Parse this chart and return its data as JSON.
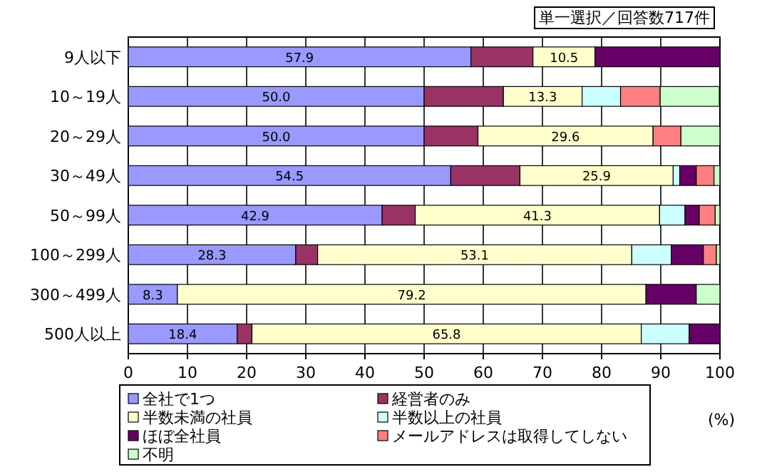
{
  "chart_data": {
    "type": "bar",
    "orientation": "horizontal",
    "stacked": true,
    "categories": [
      "9人以下",
      "10～19人",
      "20～29人",
      "30～49人",
      "50～99人",
      "100～299人",
      "300～499人",
      "500人以上"
    ],
    "series": [
      {
        "name": "全社で1つ",
        "color": "#9999ff",
        "values": [
          57.9,
          50.0,
          50.0,
          54.5,
          42.9,
          28.3,
          8.3,
          18.4
        ],
        "value_labels": [
          "57.9",
          "50.0",
          "50.0",
          "54.5",
          "42.9",
          "28.3",
          "8.3",
          "18.4"
        ]
      },
      {
        "name": "経営者のみ",
        "color": "#993366",
        "values": [
          10.5,
          13.4,
          9.1,
          11.7,
          5.6,
          3.7,
          null,
          2.5
        ]
      },
      {
        "name": "半数未満の社員",
        "color": "#ffffcc",
        "values": [
          10.5,
          13.3,
          29.6,
          25.9,
          41.3,
          53.1,
          79.2,
          65.8
        ],
        "value_labels": [
          "10.5",
          "13.3",
          "29.6",
          "25.9",
          "41.3",
          "53.1",
          "79.2",
          "65.8"
        ]
      },
      {
        "name": "半数以上の社員",
        "color": "#ccffff",
        "values": [
          null,
          6.5,
          null,
          1.1,
          4.3,
          6.7,
          null,
          8.1
        ]
      },
      {
        "name": "ほぼ全社員",
        "color": "#660066",
        "values": [
          21.1,
          null,
          null,
          2.8,
          2.4,
          5.4,
          8.5,
          5.2
        ]
      },
      {
        "name": "メールアドレスは取得してしない",
        "color": "#ff8080",
        "values": [
          null,
          6.7,
          4.7,
          3.0,
          2.7,
          2.2,
          null,
          null
        ]
      },
      {
        "name": "不明",
        "color": "#ccffcc",
        "values": [
          null,
          10.0,
          6.6,
          1.0,
          0.8,
          0.6,
          4.0,
          null
        ]
      }
    ],
    "xlim": [
      0,
      100
    ],
    "xticks": [
      0,
      10,
      20,
      30,
      40,
      50,
      60,
      70,
      80,
      90,
      100
    ],
    "xlabel": "(%)",
    "grid": "x",
    "legend": "bottom",
    "annotations": [
      "単一選択／回答数717件"
    ]
  }
}
